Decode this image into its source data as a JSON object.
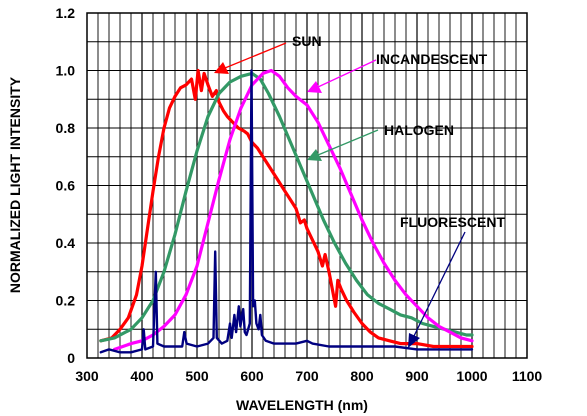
{
  "chart_data": {
    "type": "line",
    "title": "",
    "xlabel": "WAVELENGTH (nm)",
    "ylabel": "NORMALIZED LIGHT INTENSITY",
    "xlim": [
      300,
      1100
    ],
    "ylim": [
      0,
      1.2
    ],
    "x_ticks": [
      300,
      400,
      500,
      600,
      700,
      800,
      900,
      1000,
      1100
    ],
    "y_ticks": [
      0,
      0.2,
      0.4,
      0.6,
      0.8,
      1.0,
      1.2
    ],
    "x_tick_labels": [
      "300",
      "400",
      "500",
      "600",
      "700",
      "800",
      "900",
      "1000",
      "1100"
    ],
    "y_tick_labels": [
      "0",
      "0.2",
      "0.4",
      "0.6",
      "0.8",
      "1.0",
      "1.2"
    ],
    "grid": true,
    "legend": "none (curves labelled with arrows)",
    "series": [
      {
        "name": "SUN",
        "color": "#ff0000",
        "points": [
          [
            325,
            0.06
          ],
          [
            345,
            0.07
          ],
          [
            360,
            0.1
          ],
          [
            375,
            0.14
          ],
          [
            390,
            0.22
          ],
          [
            400,
            0.32
          ],
          [
            410,
            0.45
          ],
          [
            420,
            0.58
          ],
          [
            430,
            0.7
          ],
          [
            440,
            0.8
          ],
          [
            450,
            0.87
          ],
          [
            460,
            0.91
          ],
          [
            470,
            0.94
          ],
          [
            480,
            0.95
          ],
          [
            490,
            0.97
          ],
          [
            497,
            0.9
          ],
          [
            502,
            1.0
          ],
          [
            508,
            0.93
          ],
          [
            513,
            0.99
          ],
          [
            520,
            0.95
          ],
          [
            528,
            0.91
          ],
          [
            535,
            0.93
          ],
          [
            540,
            0.89
          ],
          [
            548,
            0.86
          ],
          [
            555,
            0.84
          ],
          [
            565,
            0.82
          ],
          [
            575,
            0.8
          ],
          [
            585,
            0.79
          ],
          [
            592,
            0.78
          ],
          [
            600,
            0.75
          ],
          [
            610,
            0.73
          ],
          [
            620,
            0.7
          ],
          [
            630,
            0.67
          ],
          [
            640,
            0.64
          ],
          [
            650,
            0.61
          ],
          [
            660,
            0.58
          ],
          [
            670,
            0.55
          ],
          [
            680,
            0.52
          ],
          [
            688,
            0.47
          ],
          [
            695,
            0.48
          ],
          [
            700,
            0.45
          ],
          [
            710,
            0.41
          ],
          [
            720,
            0.37
          ],
          [
            728,
            0.32
          ],
          [
            733,
            0.36
          ],
          [
            740,
            0.3
          ],
          [
            748,
            0.22
          ],
          [
            752,
            0.18
          ],
          [
            756,
            0.27
          ],
          [
            762,
            0.24
          ],
          [
            772,
            0.2
          ],
          [
            785,
            0.16
          ],
          [
            800,
            0.12
          ],
          [
            815,
            0.09
          ],
          [
            830,
            0.07
          ],
          [
            850,
            0.06
          ],
          [
            870,
            0.05
          ],
          [
            900,
            0.05
          ],
          [
            930,
            0.04
          ],
          [
            960,
            0.04
          ],
          [
            1000,
            0.04
          ]
        ]
      },
      {
        "name": "HALOGEN",
        "color": "#339966",
        "points": [
          [
            325,
            0.06
          ],
          [
            350,
            0.07
          ],
          [
            380,
            0.1
          ],
          [
            400,
            0.14
          ],
          [
            420,
            0.2
          ],
          [
            440,
            0.3
          ],
          [
            460,
            0.43
          ],
          [
            480,
            0.58
          ],
          [
            500,
            0.72
          ],
          [
            520,
            0.84
          ],
          [
            540,
            0.92
          ],
          [
            560,
            0.96
          ],
          [
            580,
            0.98
          ],
          [
            600,
            0.99
          ],
          [
            615,
            0.97
          ],
          [
            630,
            0.92
          ],
          [
            650,
            0.84
          ],
          [
            670,
            0.75
          ],
          [
            690,
            0.66
          ],
          [
            710,
            0.57
          ],
          [
            730,
            0.48
          ],
          [
            750,
            0.4
          ],
          [
            770,
            0.33
          ],
          [
            790,
            0.27
          ],
          [
            810,
            0.22
          ],
          [
            830,
            0.19
          ],
          [
            850,
            0.17
          ],
          [
            870,
            0.15
          ],
          [
            890,
            0.14
          ],
          [
            910,
            0.12
          ],
          [
            930,
            0.11
          ],
          [
            950,
            0.1
          ],
          [
            970,
            0.09
          ],
          [
            990,
            0.08
          ],
          [
            1000,
            0.08
          ]
        ]
      },
      {
        "name": "INCANDESCENT",
        "color": "#ff00ff",
        "points": [
          [
            350,
            0.03
          ],
          [
            380,
            0.05
          ],
          [
            400,
            0.06
          ],
          [
            420,
            0.08
          ],
          [
            440,
            0.11
          ],
          [
            460,
            0.15
          ],
          [
            480,
            0.22
          ],
          [
            500,
            0.32
          ],
          [
            520,
            0.47
          ],
          [
            540,
            0.62
          ],
          [
            560,
            0.76
          ],
          [
            580,
            0.87
          ],
          [
            600,
            0.95
          ],
          [
            620,
            0.99
          ],
          [
            635,
            1.0
          ],
          [
            650,
            0.98
          ],
          [
            665,
            0.94
          ],
          [
            680,
            0.91
          ],
          [
            700,
            0.88
          ],
          [
            720,
            0.82
          ],
          [
            740,
            0.74
          ],
          [
            760,
            0.66
          ],
          [
            780,
            0.57
          ],
          [
            800,
            0.48
          ],
          [
            820,
            0.4
          ],
          [
            840,
            0.33
          ],
          [
            860,
            0.27
          ],
          [
            880,
            0.22
          ],
          [
            900,
            0.18
          ],
          [
            920,
            0.14
          ],
          [
            940,
            0.11
          ],
          [
            960,
            0.09
          ],
          [
            980,
            0.07
          ],
          [
            1000,
            0.06
          ]
        ]
      },
      {
        "name": "FLUORESCENT",
        "color": "#000080",
        "points": [
          [
            325,
            0.02
          ],
          [
            340,
            0.03
          ],
          [
            360,
            0.02
          ],
          [
            380,
            0.02
          ],
          [
            400,
            0.03
          ],
          [
            403,
            0.1
          ],
          [
            406,
            0.03
          ],
          [
            420,
            0.04
          ],
          [
            425,
            0.3
          ],
          [
            428,
            0.05
          ],
          [
            440,
            0.04
          ],
          [
            460,
            0.04
          ],
          [
            473,
            0.04
          ],
          [
            477,
            0.09
          ],
          [
            481,
            0.05
          ],
          [
            500,
            0.04
          ],
          [
            520,
            0.05
          ],
          [
            530,
            0.07
          ],
          [
            533,
            0.37
          ],
          [
            536,
            0.07
          ],
          [
            545,
            0.05
          ],
          [
            555,
            0.06
          ],
          [
            560,
            0.12
          ],
          [
            563,
            0.07
          ],
          [
            568,
            0.15
          ],
          [
            571,
            0.09
          ],
          [
            576,
            0.18
          ],
          [
            579,
            0.11
          ],
          [
            584,
            0.17
          ],
          [
            587,
            0.09
          ],
          [
            590,
            0.08
          ],
          [
            596,
            0.12
          ],
          [
            599,
            1.0
          ],
          [
            602,
            0.18
          ],
          [
            605,
            0.2
          ],
          [
            608,
            0.12
          ],
          [
            612,
            0.1
          ],
          [
            615,
            0.15
          ],
          [
            618,
            0.08
          ],
          [
            625,
            0.06
          ],
          [
            640,
            0.05
          ],
          [
            660,
            0.05
          ],
          [
            680,
            0.05
          ],
          [
            700,
            0.06
          ],
          [
            710,
            0.05
          ],
          [
            740,
            0.04
          ],
          [
            780,
            0.04
          ],
          [
            820,
            0.04
          ],
          [
            860,
            0.04
          ],
          [
            900,
            0.03
          ],
          [
            950,
            0.03
          ],
          [
            1000,
            0.03
          ]
        ]
      }
    ],
    "annotations": [
      {
        "text": "SUN",
        "series": "SUN"
      },
      {
        "text": "INCANDESCENT",
        "series": "INCANDESCENT"
      },
      {
        "text": "HALOGEN",
        "series": "HALOGEN"
      },
      {
        "text": "FLUORESCENT",
        "series": "FLUORESCENT"
      }
    ]
  }
}
